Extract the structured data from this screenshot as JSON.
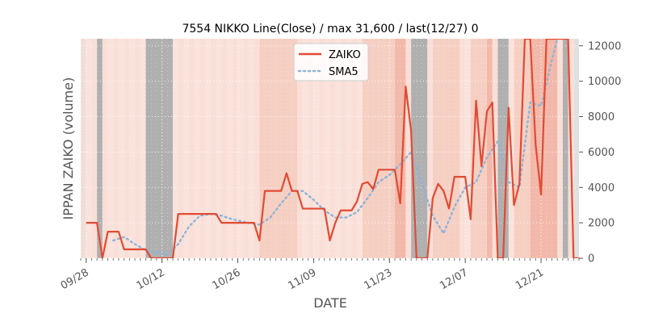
{
  "chart_data": {
    "type": "line",
    "title": "7554 NIKKO Line(Close) / max 31,600 / last(12/27) 0",
    "xlabel": "DATE",
    "ylabel": "IPPAN ZAIKO (volume)",
    "ylim": [
      0,
      12400
    ],
    "xlim": [
      "2021-09-27",
      "2021-12-28"
    ],
    "yticks": [
      0,
      2000,
      4000,
      6000,
      8000,
      10000,
      12000
    ],
    "ytick_labels": [
      "0",
      "2000",
      "4000",
      "6000",
      "8000",
      "10000",
      "12000"
    ],
    "xticks": [
      "2021-09-28",
      "2021-10-12",
      "2021-10-26",
      "2021-11-09",
      "2021-11-23",
      "2021-12-07",
      "2021-12-21"
    ],
    "xtick_labels": [
      "09/28",
      "10/12",
      "10/26",
      "11/09",
      "11/23",
      "12/07",
      "12/21"
    ],
    "legend": {
      "placement": "top-center",
      "entries": [
        "ZAIKO",
        "SMA5"
      ]
    },
    "colors": {
      "zaiko": "#e24a33",
      "sma": "#8eb4d8",
      "weekend_band": "#b0b0b0",
      "band_light": "#fae3dc",
      "band_mid": "#f6cfc3",
      "band_dark": "#f2b8a9",
      "edge_band": "#e0e0e0"
    },
    "bands": {
      "weekends": [
        [
          "2021-09-30",
          "2021-10-01"
        ],
        [
          "2021-10-09",
          "2021-10-14"
        ],
        [
          "2021-11-27",
          "2021-11-30"
        ],
        [
          "2021-12-13",
          "2021-12-15"
        ],
        [
          "2021-12-25",
          "2021-12-26"
        ]
      ],
      "mid": [
        [
          "2021-10-30",
          "2021-11-06"
        ],
        [
          "2021-11-18",
          "2021-11-25"
        ],
        [
          "2021-12-01",
          "2021-12-06"
        ],
        [
          "2021-12-08",
          "2021-12-12"
        ],
        [
          "2021-12-16",
          "2021-12-19"
        ]
      ],
      "dark": [
        [
          "2021-11-24",
          "2021-11-26"
        ],
        [
          "2021-12-11",
          "2021-12-12"
        ],
        [
          "2021-12-19",
          "2021-12-24"
        ]
      ]
    },
    "series": [
      {
        "name": "ZAIKO",
        "style": "solid",
        "points": [
          [
            "2021-09-28",
            2000
          ],
          [
            "2021-09-30",
            2000
          ],
          [
            "2021-10-01",
            0
          ],
          [
            "2021-10-02",
            1500
          ],
          [
            "2021-10-04",
            1500
          ],
          [
            "2021-10-05",
            500
          ],
          [
            "2021-10-09",
            500
          ],
          [
            "2021-10-10",
            0
          ],
          [
            "2021-10-14",
            0
          ],
          [
            "2021-10-15",
            2500
          ],
          [
            "2021-10-22",
            2500
          ],
          [
            "2021-10-23",
            2000
          ],
          [
            "2021-10-29",
            2000
          ],
          [
            "2021-10-30",
            1000
          ],
          [
            "2021-10-31",
            3800
          ],
          [
            "2021-11-03",
            3800
          ],
          [
            "2021-11-04",
            4800
          ],
          [
            "2021-11-05",
            3800
          ],
          [
            "2021-11-06",
            3800
          ],
          [
            "2021-11-07",
            2800
          ],
          [
            "2021-11-11",
            2800
          ],
          [
            "2021-11-12",
            1000
          ],
          [
            "2021-11-13",
            2000
          ],
          [
            "2021-11-14",
            2700
          ],
          [
            "2021-11-16",
            2700
          ],
          [
            "2021-11-17",
            3200
          ],
          [
            "2021-11-18",
            4200
          ],
          [
            "2021-11-19",
            4300
          ],
          [
            "2021-11-20",
            3900
          ],
          [
            "2021-11-21",
            5000
          ],
          [
            "2021-11-24",
            5000
          ],
          [
            "2021-11-25",
            3100
          ],
          [
            "2021-11-26",
            9700
          ],
          [
            "2021-11-27",
            7200
          ],
          [
            "2021-11-28",
            0
          ],
          [
            "2021-11-30",
            0
          ],
          [
            "2021-12-01",
            3400
          ],
          [
            "2021-12-02",
            4200
          ],
          [
            "2021-12-03",
            3800
          ],
          [
            "2021-12-04",
            2800
          ],
          [
            "2021-12-05",
            4600
          ],
          [
            "2021-12-07",
            4600
          ],
          [
            "2021-12-08",
            2200
          ],
          [
            "2021-12-09",
            8900
          ],
          [
            "2021-12-10",
            5200
          ],
          [
            "2021-12-11",
            8300
          ],
          [
            "2021-12-12",
            8800
          ],
          [
            "2021-12-13",
            0
          ],
          [
            "2021-12-14",
            0
          ],
          [
            "2021-12-15",
            8500
          ],
          [
            "2021-12-16",
            3000
          ],
          [
            "2021-12-17",
            4200
          ],
          [
            "2021-12-18",
            12400
          ],
          [
            "2021-12-19",
            12400
          ],
          [
            "2021-12-20",
            6400
          ],
          [
            "2021-12-21",
            3600
          ],
          [
            "2021-12-22",
            12400
          ],
          [
            "2021-12-26",
            12400
          ],
          [
            "2021-12-27",
            0
          ],
          [
            "2021-12-28",
            0
          ]
        ]
      },
      {
        "name": "SMA5",
        "style": "dotted",
        "points": [
          [
            "2021-10-03",
            1000
          ],
          [
            "2021-10-05",
            1200
          ],
          [
            "2021-10-07",
            800
          ],
          [
            "2021-10-09",
            450
          ],
          [
            "2021-10-11",
            300
          ],
          [
            "2021-10-13",
            200
          ],
          [
            "2021-10-15",
            800
          ],
          [
            "2021-10-17",
            1800
          ],
          [
            "2021-10-19",
            2400
          ],
          [
            "2021-10-21",
            2500
          ],
          [
            "2021-10-23",
            2400
          ],
          [
            "2021-10-25",
            2200
          ],
          [
            "2021-10-28",
            2000
          ],
          [
            "2021-10-30",
            1900
          ],
          [
            "2021-11-01",
            2300
          ],
          [
            "2021-11-03",
            3100
          ],
          [
            "2021-11-05",
            3800
          ],
          [
            "2021-11-07",
            3800
          ],
          [
            "2021-11-09",
            3300
          ],
          [
            "2021-11-11",
            2700
          ],
          [
            "2021-11-13",
            2300
          ],
          [
            "2021-11-15",
            2300
          ],
          [
            "2021-11-17",
            2600
          ],
          [
            "2021-11-19",
            3400
          ],
          [
            "2021-11-21",
            4300
          ],
          [
            "2021-11-23",
            4700
          ],
          [
            "2021-11-25",
            5300
          ],
          [
            "2021-11-27",
            6000
          ],
          [
            "2021-11-29",
            4200
          ],
          [
            "2021-12-01",
            2400
          ],
          [
            "2021-12-03",
            1400
          ],
          [
            "2021-12-05",
            2900
          ],
          [
            "2021-12-07",
            4000
          ],
          [
            "2021-12-09",
            4300
          ],
          [
            "2021-12-11",
            5700
          ],
          [
            "2021-12-13",
            6600
          ],
          [
            "2021-12-15",
            4300
          ],
          [
            "2021-12-17",
            4000
          ],
          [
            "2021-12-19",
            8800
          ],
          [
            "2021-12-21",
            8600
          ],
          [
            "2021-12-23",
            11200
          ],
          [
            "2021-12-24",
            12400
          ]
        ]
      }
    ]
  }
}
